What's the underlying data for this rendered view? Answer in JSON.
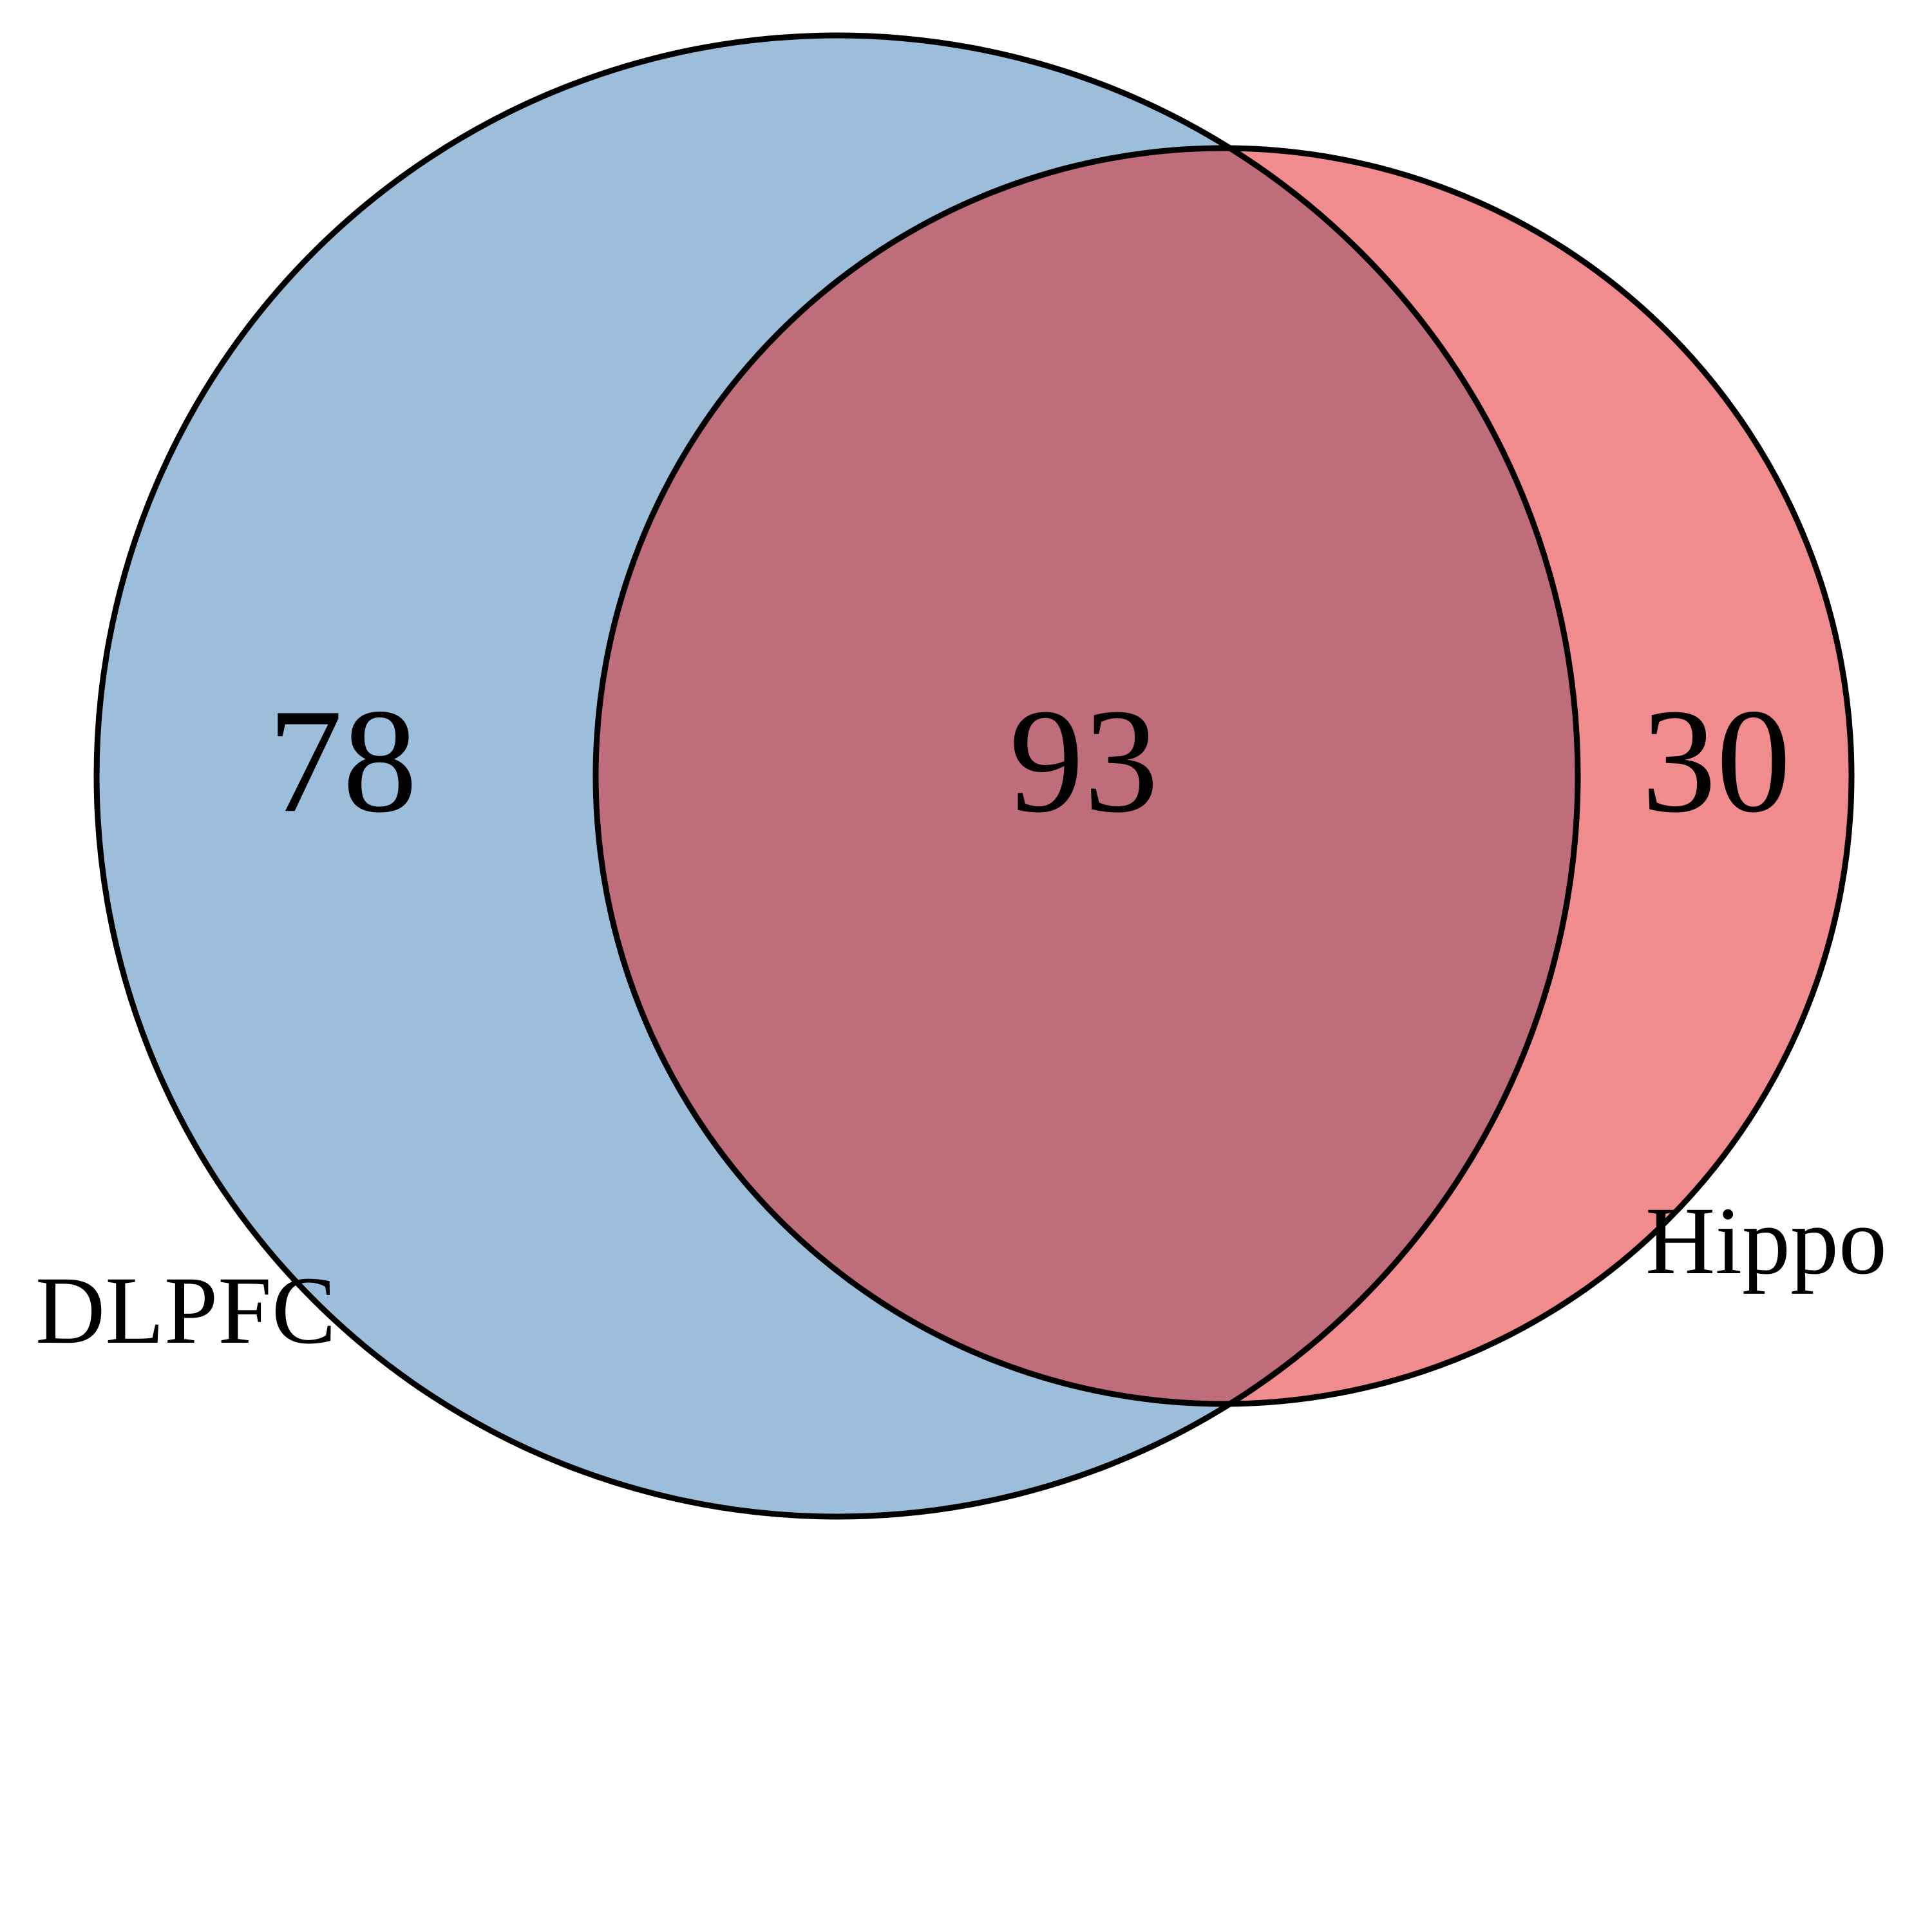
{
  "diagram": {
    "type": "venn",
    "sets": [
      {
        "key": "left",
        "label": "DLPFC",
        "fill": "#9dbedb"
      },
      {
        "key": "right",
        "label": "Hippo",
        "fill": "#f08c8d"
      }
    ],
    "overlap_fill": "#bf6d7b",
    "outline_color": "#000000",
    "counts": {
      "left_only": "78",
      "both": "93",
      "right_only": "30"
    }
  }
}
